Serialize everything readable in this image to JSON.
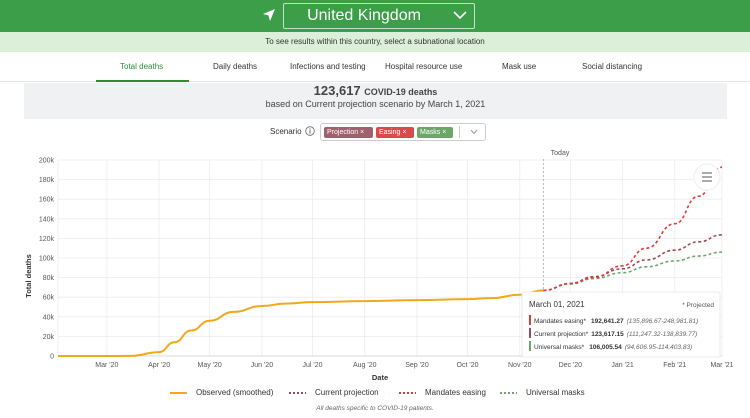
{
  "header": {
    "country": "United Kingdom",
    "subtitle": "To see results within this country, select a subnational location",
    "location_icon": "navigation-arrow-icon",
    "dropdown_icon": "chevron-down-icon"
  },
  "tabs": [
    {
      "label": "Total deaths",
      "active": true
    },
    {
      "label": "Daily deaths",
      "active": false
    },
    {
      "label": "Infections and testing",
      "active": false
    },
    {
      "label": "Hospital resource use",
      "active": false
    },
    {
      "label": "Mask use",
      "active": false
    },
    {
      "label": "Social distancing",
      "active": false
    }
  ],
  "summary": {
    "count": "123,617",
    "unit": "COVID-19 deaths",
    "description": "based on Current projection scenario by March 1, 2021"
  },
  "scenario": {
    "label": "Scenario",
    "chips": [
      {
        "label": "Projection",
        "color": "#a0616e"
      },
      {
        "label": "Easing",
        "color": "#d94a4a"
      },
      {
        "label": "Masks",
        "color": "#6ea66a"
      }
    ]
  },
  "colors": {
    "observed": "#f2a81d",
    "projection": "#9b4b57",
    "easing": "#e03b3b",
    "masks": "#6ea66a",
    "accent": "#2e8b3a",
    "topbar": "#3c9e48"
  },
  "chart_data": {
    "type": "line",
    "xlabel": "Date",
    "ylabel": "Total deaths",
    "ylim": [
      0,
      200000
    ],
    "yticks": [
      "0",
      "20k",
      "40k",
      "60k",
      "80k",
      "100k",
      "120k",
      "140k",
      "160k",
      "180k",
      "200k"
    ],
    "xticks": [
      "Mar '20",
      "Apr '20",
      "May '20",
      "Jun '20",
      "Jul '20",
      "Aug '20",
      "Sep '20",
      "Oct '20",
      "Nov '20",
      "Dec '20",
      "Jan '21",
      "Feb '21",
      "Mar '21"
    ],
    "today_label": "Today",
    "today": "2020-11-15",
    "grid": true,
    "series": [
      {
        "name": "Observed (smoothed)",
        "style": "solid",
        "x": [
          "2020-02-01",
          "2020-03-01",
          "2020-03-15",
          "2020-04-01",
          "2020-04-10",
          "2020-04-20",
          "2020-05-01",
          "2020-05-15",
          "2020-06-01",
          "2020-06-15",
          "2020-07-01",
          "2020-08-01",
          "2020-09-01",
          "2020-10-01",
          "2020-10-15",
          "2020-11-01",
          "2020-11-15"
        ],
        "y": [
          0,
          0,
          100,
          4000,
          14000,
          26000,
          36000,
          45000,
          51000,
          53500,
          55000,
          56000,
          57000,
          58000,
          59000,
          62500,
          67000
        ]
      },
      {
        "name": "Current projection",
        "style": "dashed",
        "x": [
          "2020-11-15",
          "2020-12-01",
          "2020-12-15",
          "2021-01-01",
          "2021-01-15",
          "2021-02-01",
          "2021-02-15",
          "2021-03-01"
        ],
        "y": [
          67000,
          74000,
          81000,
          89000,
          98000,
          108000,
          116500,
          123617.15
        ]
      },
      {
        "name": "Mandates easing",
        "style": "dashed",
        "x": [
          "2020-11-15",
          "2020-12-01",
          "2020-12-15",
          "2021-01-01",
          "2021-01-15",
          "2021-02-01",
          "2021-02-15",
          "2021-03-01"
        ],
        "y": [
          67000,
          74000,
          80000,
          92000,
          110000,
          135000,
          163000,
          192641.27
        ]
      },
      {
        "name": "Universal masks",
        "style": "dashed",
        "x": [
          "2020-11-15",
          "2020-12-01",
          "2020-12-15",
          "2021-01-01",
          "2021-01-15",
          "2021-02-01",
          "2021-02-15",
          "2021-03-01"
        ],
        "y": [
          67000,
          73500,
          79000,
          85000,
          91000,
          97000,
          102000,
          106005.54
        ]
      }
    ],
    "tooltip": {
      "date": "March 01, 2021",
      "tag": "* Projected",
      "rows": [
        {
          "label": "Mandates easing*",
          "value": "192,641.27",
          "range": "(135,896.67-248,981.81)",
          "color": "#e03b3b"
        },
        {
          "label": "Current projection*",
          "value": "123,617.15",
          "range": "(111,247.32-138,839.77)",
          "color": "#9b4b57"
        },
        {
          "label": "Universal masks*",
          "value": "106,005.54",
          "range": "(94,606.95-114,403.83)",
          "color": "#6ea66a"
        }
      ]
    },
    "legend": [
      "Observed (smoothed)",
      "Current projection",
      "Mandates easing",
      "Universal masks"
    ],
    "footnote": "All deaths specific to COVID-19 patients.",
    "menu_icon": "menu-lines-icon"
  }
}
